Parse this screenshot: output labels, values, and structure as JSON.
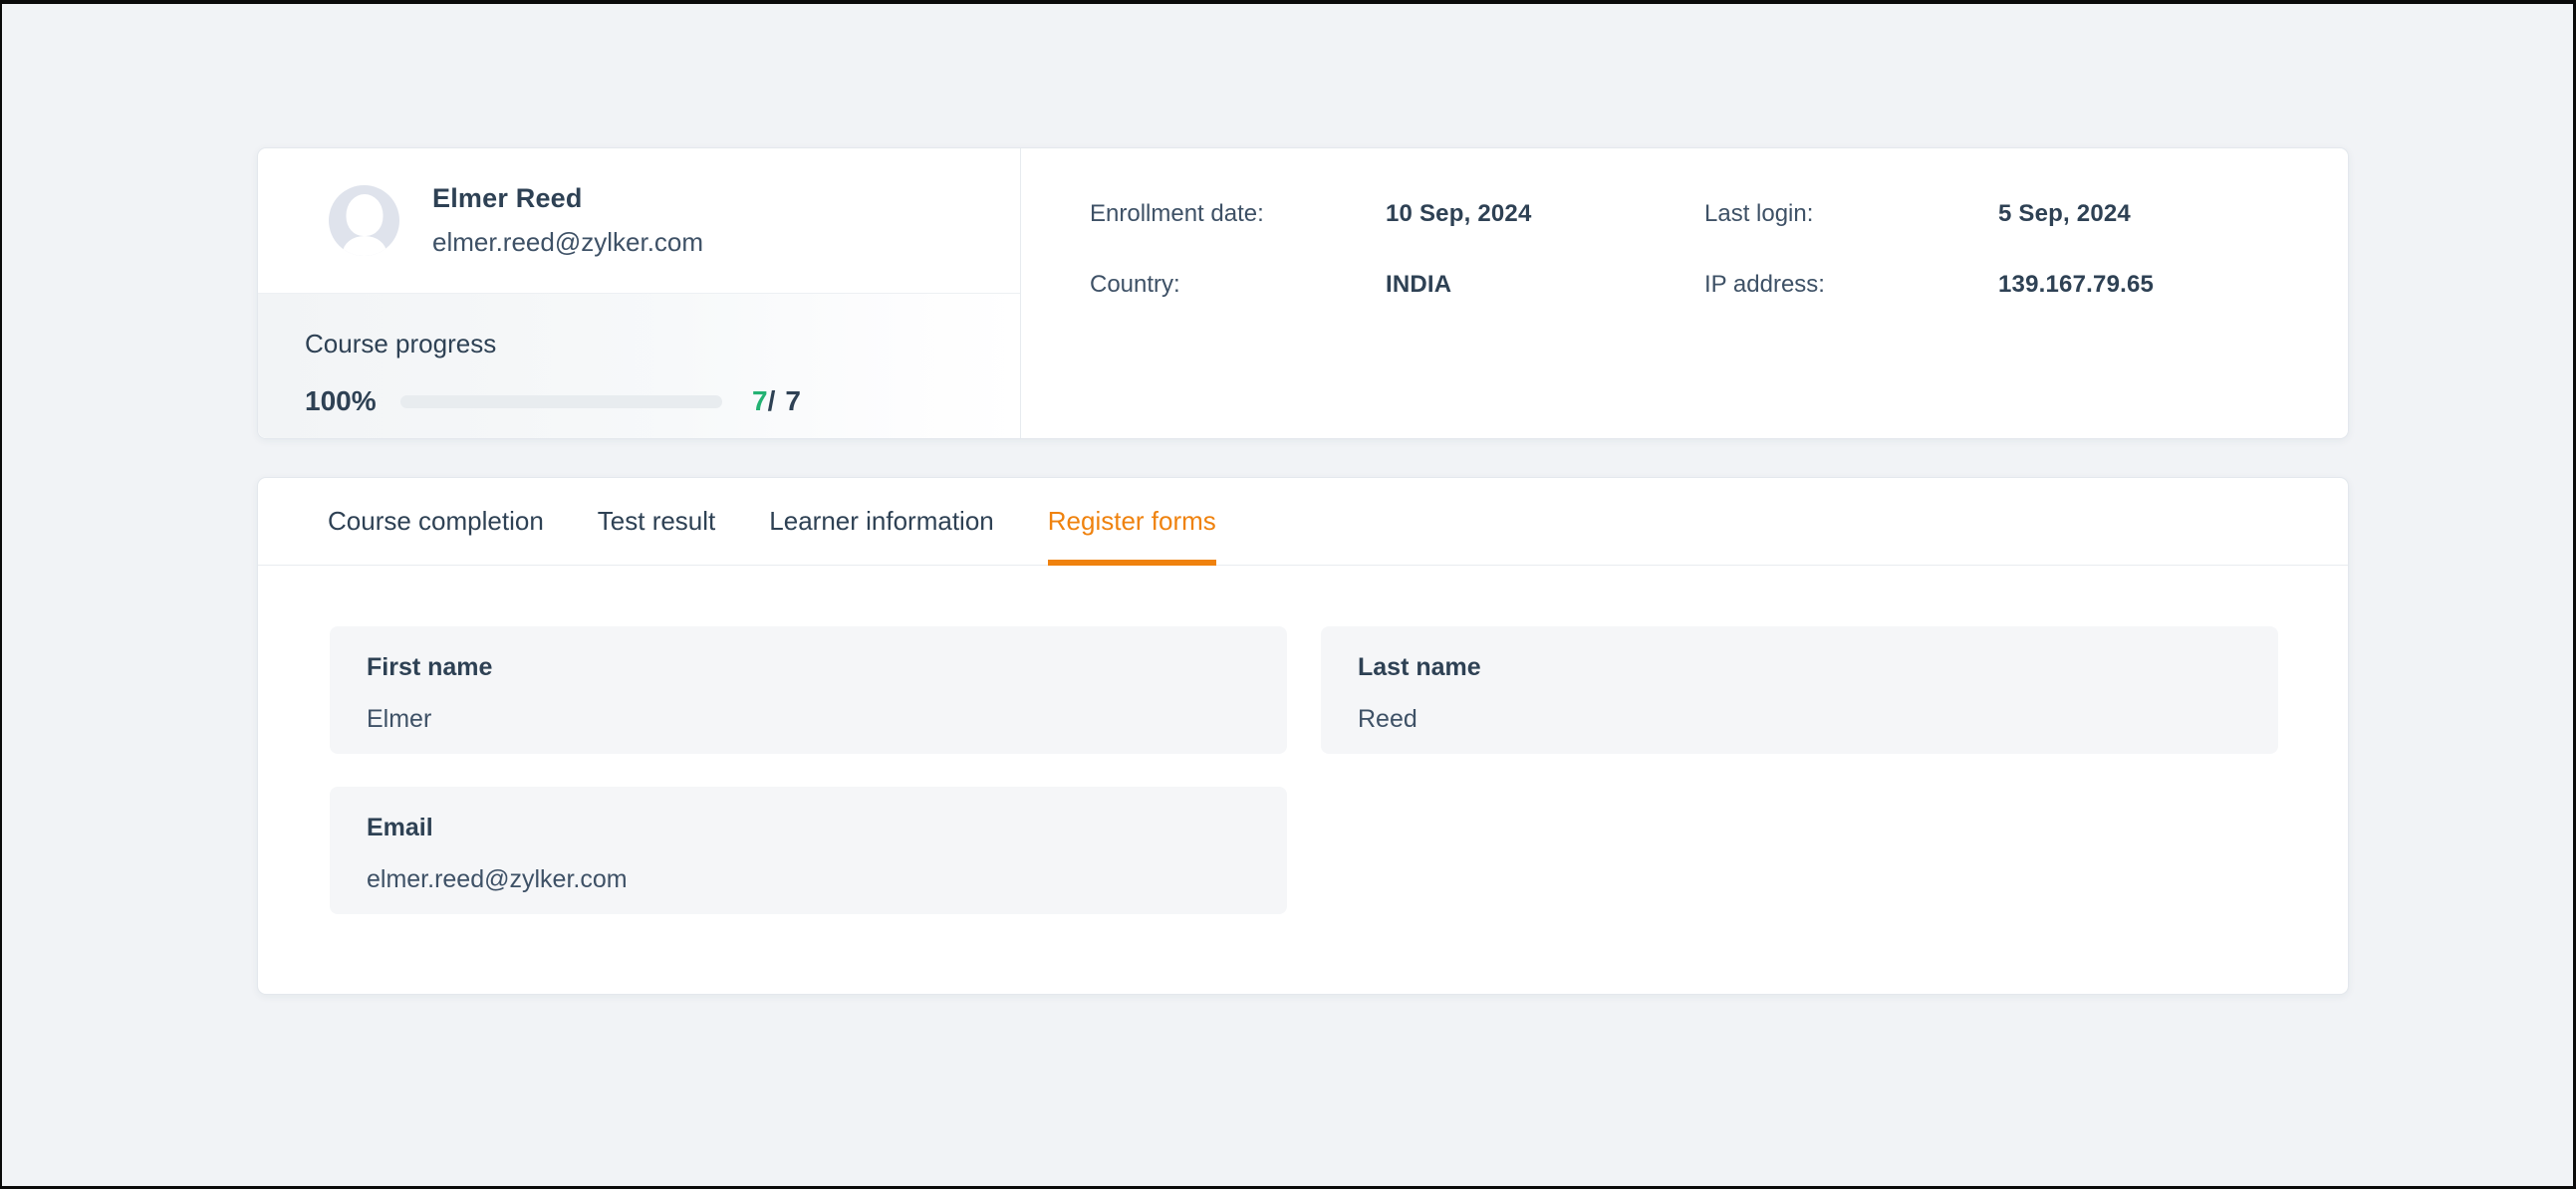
{
  "theme": {
    "accent-orange": "#ef820e",
    "progress-green": "#23b273",
    "text-dark": "#2e4154",
    "text-regular": "#3e5166",
    "page-bg": "#f1f3f6"
  },
  "profile_card": {
    "name": "Elmer Reed",
    "email": "elmer.reed@zylker.com",
    "progress": {
      "label": "Course progress",
      "percent": "100%",
      "percent_value": 100,
      "completed": "7",
      "separator": "/",
      "total": "7",
      "bar_color": "#23b273"
    },
    "details": [
      {
        "label": "Enrollment date:",
        "value": "10 Sep, 2024"
      },
      {
        "label": "Last login:",
        "value": "5 Sep, 2024"
      },
      {
        "label": "Country:",
        "value": "INDIA"
      },
      {
        "label": "IP address:",
        "value": "139.167.79.65"
      }
    ]
  },
  "tabs": {
    "items": [
      {
        "label": "Course completion",
        "active": false
      },
      {
        "label": "Test result",
        "active": false
      },
      {
        "label": "Learner information",
        "active": false
      },
      {
        "label": "Register forms",
        "active": true
      }
    ],
    "active_color": "#ef820e"
  },
  "register_form": {
    "fields": [
      {
        "label": "First name",
        "value": "Elmer"
      },
      {
        "label": "Last name",
        "value": "Reed"
      },
      {
        "label": "Email",
        "value": "elmer.reed@zylker.com"
      }
    ]
  }
}
